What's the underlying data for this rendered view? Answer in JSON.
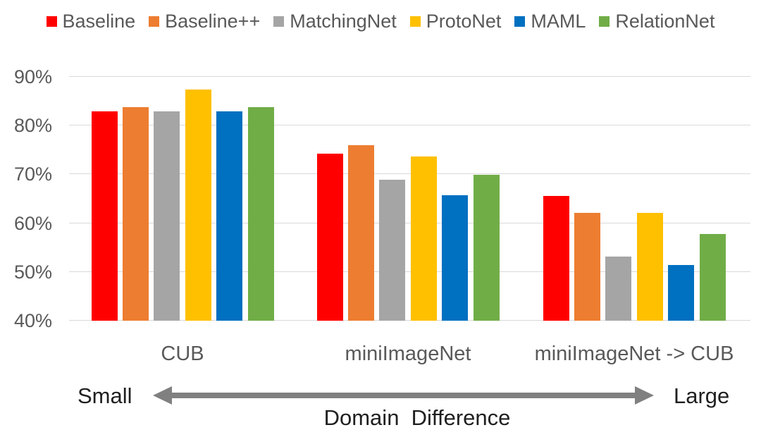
{
  "chart_data": {
    "type": "bar",
    "title": "",
    "xlabel": "",
    "ylabel": "",
    "categories": [
      "CUB",
      "miniImageNet",
      "miniImageNet -> CUB"
    ],
    "series": [
      {
        "name": "Baseline",
        "color": "#FF0000",
        "values": [
          82.9,
          74.3,
          65.6
        ]
      },
      {
        "name": "Baseline++",
        "color": "#ED7D31",
        "values": [
          83.7,
          75.9,
          62.1
        ]
      },
      {
        "name": "MatchingNet",
        "color": "#A5A5A5",
        "values": [
          82.9,
          68.9,
          53.1
        ]
      },
      {
        "name": "ProtoNet",
        "color": "#FFC000",
        "values": [
          87.4,
          73.7,
          62.1
        ]
      },
      {
        "name": "MAML",
        "color": "#0070C0",
        "values": [
          82.9,
          65.7,
          51.4
        ]
      },
      {
        "name": "RelationNet",
        "color": "#70AD47",
        "values": [
          83.7,
          69.9,
          57.7
        ]
      }
    ],
    "ylim": [
      40,
      92
    ],
    "yticks": [
      "90%",
      "80%",
      "70%",
      "60%",
      "50%",
      "40%"
    ],
    "ytick_values": [
      90,
      80,
      70,
      60,
      50,
      40
    ],
    "grid": true,
    "legend_position": "top"
  },
  "annotation": {
    "left_label": "Small",
    "right_label": "Large",
    "caption": "Domain  Difference"
  },
  "colors": {
    "background": "#FFFFFF",
    "axis_text": "#595959",
    "category_text": "#595959",
    "annotation_text": "#1F1F1F",
    "gridline": "#D9D9D9",
    "arrow": "#808080"
  }
}
